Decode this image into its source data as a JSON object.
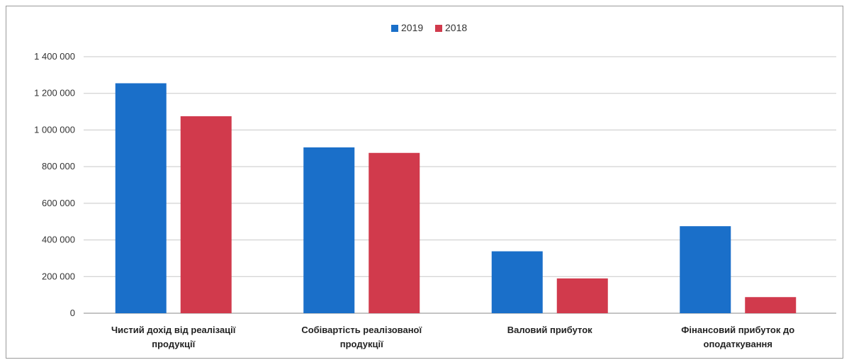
{
  "chart_data": {
    "type": "bar",
    "categories": [
      [
        "Чистий дохід від реалізації",
        "продукції"
      ],
      [
        "Собівартість реалізованої",
        "продукції"
      ],
      [
        "Валовий прибуток"
      ],
      [
        "Фінансовий прибуток до",
        "оподаткування"
      ]
    ],
    "series": [
      {
        "name": "2019",
        "color": "#1a6fc9",
        "values": [
          1255000,
          905000,
          338000,
          475000
        ]
      },
      {
        "name": "2018",
        "color": "#d13a4c",
        "values": [
          1075000,
          875000,
          190000,
          88000
        ]
      }
    ],
    "ylim": [
      0,
      1400000
    ],
    "yticks": [
      {
        "value": 0,
        "label": "0"
      },
      {
        "value": 200000,
        "label": "200 000"
      },
      {
        "value": 400000,
        "label": "400 000"
      },
      {
        "value": 600000,
        "label": "600 000"
      },
      {
        "value": 800000,
        "label": "800 000"
      },
      {
        "value": 1000000,
        "label": "1 000 000"
      },
      {
        "value": 1200000,
        "label": "1 200 000"
      },
      {
        "value": 1400000,
        "label": "1 400 000"
      }
    ],
    "grid": true,
    "legend": "top-center"
  }
}
